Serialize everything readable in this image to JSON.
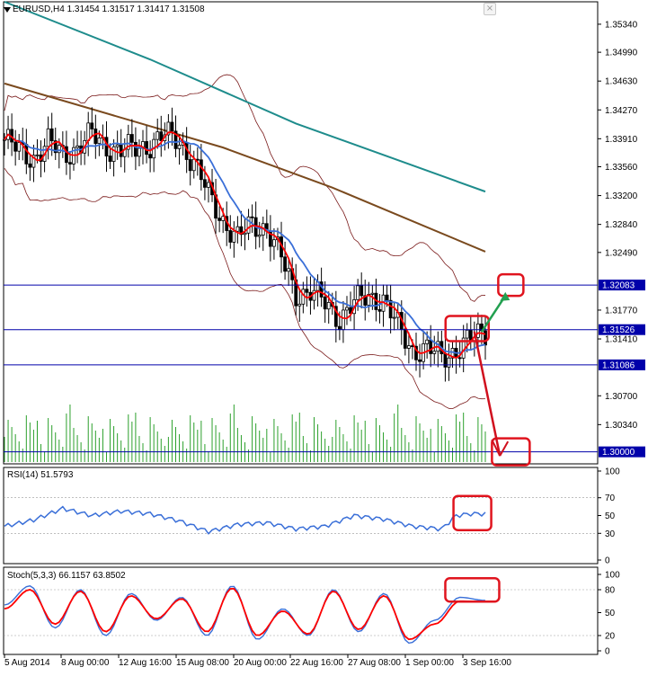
{
  "header": {
    "symbol": "EURUSD,H4",
    "ohlc": "1.31454 1.31517 1.31417 1.31508"
  },
  "colors": {
    "candle": "#000000",
    "ma_red": "#ff0000",
    "ma_blue": "#3a6fd8",
    "ma_teal": "#1e8c8c",
    "ma_brown": "#7a4a1e",
    "bollinger": "#7a1a1a",
    "volume": "#2ca02c",
    "level_line": "#0000aa",
    "annotation": "#e0141e",
    "arrow_up": "#22a050",
    "arrow_down": "#d0101e",
    "grid": "#000000"
  },
  "chart_data": [
    {
      "type": "candlestick",
      "title": "EURUSD,H4",
      "ylim": [
        1.2985,
        1.3562
      ],
      "y_ticks": [
        "1.35340",
        "1.34990",
        "1.34630",
        "1.34270",
        "1.33910",
        "1.33560",
        "1.33200",
        "1.32840",
        "1.32490",
        "1.31770",
        "1.31410",
        "1.30700",
        "1.30340"
      ],
      "level_labels": [
        "1.32083",
        "1.31526",
        "1.31086",
        "1.30000"
      ],
      "levels": [
        1.32083,
        1.31526,
        1.31086,
        1.3
      ],
      "x_tick_labels": [
        "5 Aug 2014",
        "8 Aug 00:00",
        "12 Aug 16:00",
        "15 Aug 08:00",
        "20 Aug 00:00",
        "22 Aug 16:00",
        "27 Aug 08:00",
        "1 Sep 00:00",
        "3 Sep 16:00"
      ],
      "close_path": [
        [
          0,
          1.339
        ],
        [
          4,
          1.3375
        ],
        [
          8,
          1.3368
        ],
        [
          12,
          1.3385
        ],
        [
          16,
          1.3372
        ],
        [
          20,
          1.338
        ],
        [
          24,
          1.3395
        ],
        [
          28,
          1.3382
        ],
        [
          32,
          1.3376
        ],
        [
          36,
          1.3378
        ],
        [
          40,
          1.3385
        ],
        [
          44,
          1.3395
        ],
        [
          48,
          1.3388
        ],
        [
          52,
          1.3362
        ],
        [
          56,
          1.332
        ],
        [
          60,
          1.329
        ],
        [
          64,
          1.3265
        ],
        [
          68,
          1.3285
        ],
        [
          72,
          1.328
        ],
        [
          76,
          1.324
        ],
        [
          80,
          1.3198
        ],
        [
          84,
          1.32
        ],
        [
          88,
          1.3185
        ],
        [
          92,
          1.3168
        ],
        [
          96,
          1.3185
        ],
        [
          100,
          1.3195
        ],
        [
          104,
          1.319
        ],
        [
          108,
          1.3155
        ],
        [
          112,
          1.3128
        ],
        [
          116,
          1.3128
        ],
        [
          120,
          1.3118
        ],
        [
          124,
          1.3128
        ],
        [
          128,
          1.314
        ],
        [
          132,
          1.315
        ]
      ],
      "ma_slow_teal": [
        [
          0,
          1.3562
        ],
        [
          40,
          1.349
        ],
        [
          80,
          1.341
        ],
        [
          132,
          1.3325
        ]
      ],
      "ma_slow_brown": [
        [
          0,
          1.346
        ],
        [
          30,
          1.342
        ],
        [
          60,
          1.338
        ],
        [
          90,
          1.333
        ],
        [
          132,
          1.325
        ]
      ],
      "annotations": [
        "box at 1.32083 (target up)",
        "box at 1.31526 (current)",
        "box at 1.30000 (target down)"
      ]
    },
    {
      "type": "line",
      "title": "RSI(14) 51.5793",
      "ylim": [
        0,
        100
      ],
      "y_ticks": [
        "100",
        "70",
        "50",
        "30",
        "0"
      ],
      "x": [
        0,
        8,
        16,
        24,
        32,
        40,
        48,
        56,
        64,
        72,
        80,
        88,
        96,
        104,
        112,
        120,
        124,
        128,
        132
      ],
      "values": [
        38,
        45,
        58,
        50,
        55,
        52,
        44,
        32,
        40,
        42,
        35,
        38,
        50,
        46,
        38,
        35,
        50,
        52,
        52
      ]
    },
    {
      "type": "line",
      "title": "Stoch(5,3,3) 66.1157 63.8502",
      "ylim": [
        0,
        100
      ],
      "y_ticks": [
        "100",
        "80",
        "50",
        "20",
        "0"
      ],
      "series": [
        {
          "values": [
            60,
            85,
            30,
            80,
            20,
            75,
            40,
            70,
            20,
            85,
            15,
            55,
            20,
            80,
            25,
            75,
            10,
            40,
            70,
            66
          ]
        },
        {
          "values": [
            55,
            80,
            35,
            78,
            25,
            72,
            42,
            68,
            25,
            82,
            20,
            52,
            22,
            78,
            28,
            72,
            15,
            35,
            65,
            64
          ]
        }
      ]
    }
  ]
}
